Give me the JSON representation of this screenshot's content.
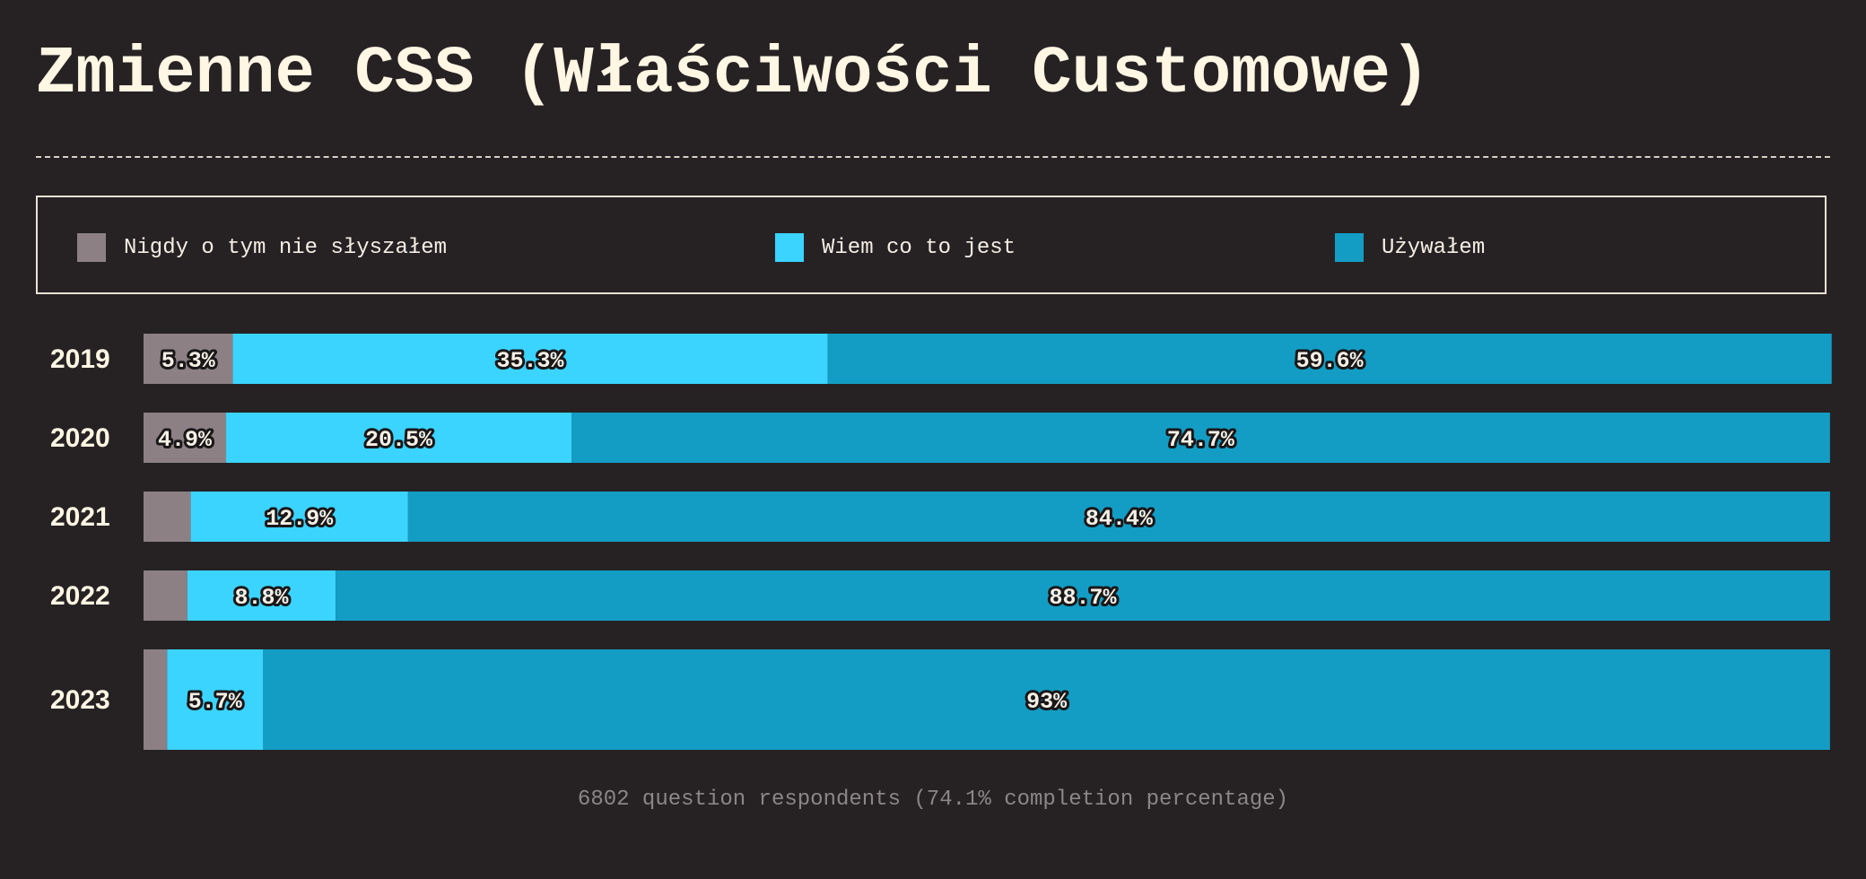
{
  "title": "Zmienne CSS (Właściwości Customowe)",
  "legend": [
    {
      "label": "Nigdy o tym nie słyszałem",
      "color": "#8c8085"
    },
    {
      "label": "Wiem co to jest",
      "color": "#3ad4ff"
    },
    {
      "label": "Używałem",
      "color": "#139dc4"
    }
  ],
  "footer": "6802 question respondents (74.1% completion percentage)",
  "chart_data": {
    "type": "bar",
    "orientation": "horizontal",
    "stacked": "percent",
    "categories": [
      "2019",
      "2020",
      "2021",
      "2022",
      "2023"
    ],
    "series": [
      {
        "name": "Nigdy o tym nie słyszałem",
        "color": "#8c8085",
        "values": [
          5.3,
          4.9,
          2.8,
          2.6,
          1.4
        ],
        "labels": [
          "5.3%",
          "4.9%",
          "",
          "",
          ""
        ]
      },
      {
        "name": "Wiem co to jest",
        "color": "#3ad4ff",
        "values": [
          35.3,
          20.5,
          12.9,
          8.8,
          5.7
        ],
        "labels": [
          "35.3%",
          "20.5%",
          "12.9%",
          "8.8%",
          "5.7%"
        ]
      },
      {
        "name": "Używałem",
        "color": "#139dc4",
        "values": [
          59.6,
          74.7,
          84.4,
          88.7,
          93
        ],
        "labels": [
          "59.6%",
          "74.7%",
          "84.4%",
          "88.7%",
          "93%"
        ]
      }
    ],
    "xlim": [
      0,
      100
    ],
    "legend_position": "top",
    "grid": false
  }
}
